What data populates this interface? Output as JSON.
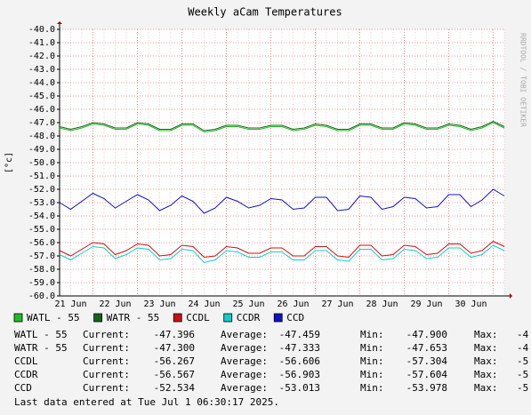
{
  "chart_data": {
    "type": "line",
    "title": "Weekly aCam Temperatures",
    "y_label": "[°c]",
    "watermark": "RRDTOOL / TOBI OETIKER",
    "categories": [
      null,
      "21 Jun",
      null,
      null,
      null,
      "22 Jun",
      null,
      null,
      null,
      "23 Jun",
      null,
      null,
      null,
      "24 Jun",
      null,
      null,
      null,
      "25 Jun",
      null,
      null,
      null,
      "26 Jun",
      null,
      null,
      null,
      "27 Jun",
      null,
      null,
      null,
      "28 Jun",
      null,
      null,
      null,
      "29 Jun",
      null,
      null,
      null,
      "30 Jun",
      null,
      null,
      null
    ],
    "ylim": [
      -60,
      -40
    ],
    "yticks": [
      {
        "value": -40,
        "label": "-40.0"
      },
      {
        "value": -41,
        "label": "-41.0"
      },
      {
        "value": -42,
        "label": "-42.0"
      },
      {
        "value": -43,
        "label": "-43.0"
      },
      {
        "value": -44,
        "label": "-44.0"
      },
      {
        "value": -45,
        "label": "-45.0"
      },
      {
        "value": -46,
        "label": "-46.0"
      },
      {
        "value": -47,
        "label": "-47.0"
      },
      {
        "value": -48,
        "label": "-48.0"
      },
      {
        "value": -49,
        "label": "-49.0"
      },
      {
        "value": -50,
        "label": "-50.0"
      },
      {
        "value": -51,
        "label": "-51.0"
      },
      {
        "value": -52,
        "label": "-52.0"
      },
      {
        "value": -53,
        "label": "-53.0"
      },
      {
        "value": -54,
        "label": "-54.0"
      },
      {
        "value": -55,
        "label": "-55.0"
      },
      {
        "value": -56,
        "label": "-56.0"
      },
      {
        "value": -57,
        "label": "-57.0"
      },
      {
        "value": -58,
        "label": "-58.0"
      },
      {
        "value": -59,
        "label": "-59.0"
      },
      {
        "value": -60,
        "label": "-60.0"
      }
    ],
    "grid": true,
    "series": [
      {
        "name": "WATL - 55",
        "color": "#22bb22",
        "values": [
          -47.4,
          -47.6,
          -47.4,
          -47.1,
          -47.2,
          -47.5,
          -47.5,
          -47.1,
          -47.2,
          -47.6,
          -47.6,
          -47.2,
          -47.2,
          -47.7,
          -47.6,
          -47.3,
          -47.3,
          -47.5,
          -47.5,
          -47.3,
          -47.3,
          -47.6,
          -47.5,
          -47.2,
          -47.3,
          -47.6,
          -47.6,
          -47.2,
          -47.2,
          -47.5,
          -47.5,
          -47.1,
          -47.2,
          -47.5,
          -47.5,
          -47.2,
          -47.3,
          -47.6,
          -47.4,
          -47.0,
          -47.4
        ]
      },
      {
        "name": "WATR - 55",
        "color": "#116611",
        "values": [
          -47.3,
          -47.5,
          -47.3,
          -47.0,
          -47.1,
          -47.4,
          -47.4,
          -47.0,
          -47.1,
          -47.5,
          -47.5,
          -47.1,
          -47.1,
          -47.6,
          -47.5,
          -47.2,
          -47.2,
          -47.4,
          -47.4,
          -47.2,
          -47.2,
          -47.5,
          -47.4,
          -47.1,
          -47.2,
          -47.5,
          -47.5,
          -47.1,
          -47.1,
          -47.4,
          -47.4,
          -47.0,
          -47.1,
          -47.4,
          -47.4,
          -47.1,
          -47.2,
          -47.5,
          -47.3,
          -46.9,
          -47.3
        ]
      },
      {
        "name": "CCDL",
        "color": "#cc1111",
        "values": [
          -56.6,
          -57.0,
          -56.5,
          -56.0,
          -56.1,
          -56.9,
          -56.6,
          -56.1,
          -56.2,
          -57.0,
          -56.9,
          -56.2,
          -56.3,
          -57.1,
          -57.0,
          -56.3,
          -56.4,
          -56.8,
          -56.8,
          -56.4,
          -56.4,
          -57.0,
          -57.0,
          -56.3,
          -56.3,
          -57.0,
          -57.1,
          -56.2,
          -56.2,
          -57.0,
          -56.9,
          -56.2,
          -56.3,
          -56.9,
          -56.8,
          -56.1,
          -56.1,
          -56.8,
          -56.6,
          -55.9,
          -56.3
        ]
      },
      {
        "name": "CCDR",
        "color": "#11cccc",
        "values": [
          -56.9,
          -57.3,
          -56.8,
          -56.3,
          -56.4,
          -57.2,
          -56.9,
          -56.4,
          -56.5,
          -57.3,
          -57.2,
          -56.5,
          -56.6,
          -57.5,
          -57.3,
          -56.6,
          -56.7,
          -57.1,
          -57.1,
          -56.7,
          -56.7,
          -57.3,
          -57.3,
          -56.6,
          -56.6,
          -57.3,
          -57.4,
          -56.5,
          -56.5,
          -57.3,
          -57.2,
          -56.5,
          -56.6,
          -57.2,
          -57.1,
          -56.4,
          -56.4,
          -57.1,
          -56.9,
          -56.2,
          -56.6
        ]
      },
      {
        "name": "CCD",
        "color": "#1111cc",
        "values": [
          -53.0,
          -53.5,
          -52.9,
          -52.3,
          -52.7,
          -53.4,
          -52.9,
          -52.4,
          -52.8,
          -53.6,
          -53.2,
          -52.5,
          -52.9,
          -53.8,
          -53.4,
          -52.6,
          -52.9,
          -53.4,
          -53.2,
          -52.7,
          -52.8,
          -53.5,
          -53.4,
          -52.6,
          -52.6,
          -53.6,
          -53.5,
          -52.5,
          -52.6,
          -53.5,
          -53.3,
          -52.6,
          -52.7,
          -53.4,
          -53.3,
          -52.4,
          -52.4,
          -53.3,
          -52.8,
          -52.0,
          -52.5
        ]
      }
    ],
    "stats": {
      "headers": [
        "Current:",
        "Average:",
        "Min:",
        "Max:"
      ],
      "rows": [
        [
          "-47.396",
          "-47.459",
          "-47.900",
          "-4"
        ],
        [
          "-47.300",
          "-47.333",
          "-47.653",
          "-4"
        ],
        [
          "-56.267",
          "-56.606",
          "-57.304",
          "-5"
        ],
        [
          "-56.567",
          "-56.903",
          "-57.604",
          "-5"
        ],
        [
          "-52.534",
          "-53.013",
          "-53.978",
          "-5"
        ]
      ]
    },
    "last_update": "Last data entered at Tue Jul  1 06:30:17 2025."
  }
}
